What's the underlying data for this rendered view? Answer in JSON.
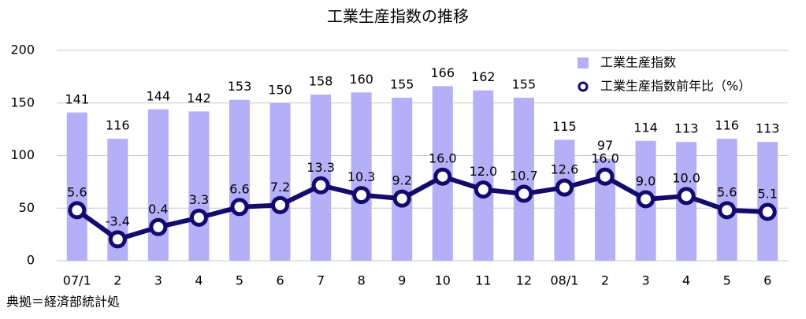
{
  "chart_data": {
    "type": "bar",
    "title": "工業生産指数の推移",
    "note": "典拠＝経済部統計処",
    "categories": [
      "07/1",
      "2",
      "3",
      "4",
      "5",
      "6",
      "7",
      "8",
      "9",
      "10",
      "11",
      "12",
      "08/1",
      "2",
      "3",
      "4",
      "5",
      "6"
    ],
    "ylim": [
      0,
      200
    ],
    "yticks": [
      0,
      50,
      100,
      150,
      200
    ],
    "y2lim": [
      -10,
      55
    ],
    "grid": true,
    "legend": "top-right",
    "series": [
      {
        "name": "工業生産指数",
        "type": "bar",
        "color": "#b4aff7",
        "values": [
          141,
          116,
          144,
          142,
          153,
          150,
          158,
          160,
          155,
          166,
          162,
          155,
          115,
          97,
          114,
          113,
          116,
          113
        ]
      },
      {
        "name": "工業生産指数前年比（%）",
        "type": "line",
        "axis": "y2",
        "color": "#140a6e",
        "values": [
          5.6,
          -3.4,
          0.4,
          3.3,
          6.6,
          7.2,
          13.3,
          10.3,
          9.2,
          16.0,
          12.0,
          10.7,
          12.6,
          16.0,
          9.0,
          10.0,
          5.6,
          5.1
        ],
        "value_labels": [
          "5.6",
          "-3.4",
          "0.4",
          "3.3",
          "6.6",
          "7.2",
          "13.3",
          "10.3",
          "9.2",
          "16.0",
          "12.0",
          "10.7",
          "12.6",
          "16.0",
          "9.0",
          "10.0",
          "5.6",
          "5.1"
        ]
      }
    ]
  }
}
